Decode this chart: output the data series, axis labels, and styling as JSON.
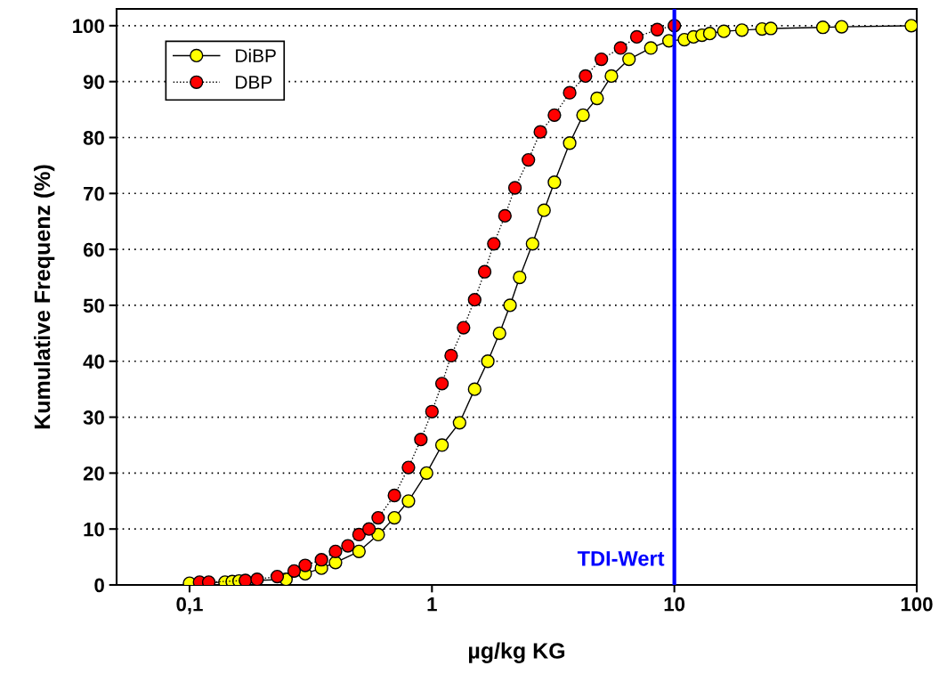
{
  "chart_data": {
    "type": "line",
    "xlabel": "µg/kg KG",
    "ylabel": "Kumulative Frequenz (%)",
    "log": "x",
    "xlim": [
      0.05,
      100
    ],
    "xticks": [
      {
        "value": 0.1,
        "label": "0,1"
      },
      1,
      10,
      100
    ],
    "ylim": [
      0,
      103
    ],
    "yticks": [
      0,
      10,
      20,
      30,
      40,
      50,
      60,
      70,
      80,
      90,
      100
    ],
    "grid": "y",
    "legend": "top left",
    "marker": "circle",
    "series": [
      {
        "name": "DiBP",
        "color": "#ffff00",
        "line_style": "solid",
        "x": [
          0.1,
          0.14,
          0.15,
          0.16,
          0.25,
          0.3,
          0.35,
          0.4,
          0.5,
          0.6,
          0.7,
          0.8,
          0.95,
          1.1,
          1.3,
          1.5,
          1.7,
          1.9,
          2.1,
          2.3,
          2.6,
          2.9,
          3.2,
          3.7,
          4.2,
          4.8,
          5.5,
          6.5,
          8,
          9.5,
          11,
          12,
          13,
          14,
          16,
          19,
          23,
          25,
          41,
          49,
          95
        ],
        "values": [
          0.3,
          0.5,
          0.6,
          0.7,
          1,
          2,
          3,
          4,
          6,
          9,
          12,
          15,
          20,
          25,
          29,
          35,
          40,
          45,
          50,
          55,
          61,
          67,
          72,
          79,
          84,
          87,
          91,
          94,
          96,
          97.3,
          97.5,
          98,
          98.3,
          98.6,
          99,
          99.2,
          99.4,
          99.5,
          99.7,
          99.8,
          100
        ]
      },
      {
        "name": "DBP",
        "color": "#ff0000",
        "line_style": "dotted",
        "x": [
          0.11,
          0.12,
          0.17,
          0.19,
          0.23,
          0.27,
          0.3,
          0.35,
          0.4,
          0.45,
          0.5,
          0.55,
          0.6,
          0.7,
          0.8,
          0.9,
          1.0,
          1.1,
          1.2,
          1.35,
          1.5,
          1.65,
          1.8,
          2.0,
          2.2,
          2.5,
          2.8,
          3.2,
          3.7,
          4.3,
          5.0,
          6.0,
          7.0,
          8.5,
          10
        ],
        "values": [
          0.5,
          0.5,
          0.8,
          1,
          1.5,
          2.5,
          3.5,
          4.5,
          6,
          7,
          9,
          10,
          12,
          16,
          21,
          26,
          31,
          36,
          41,
          46,
          51,
          56,
          61,
          66,
          71,
          76,
          81,
          84,
          88,
          91,
          94,
          96,
          98,
          99.3,
          100
        ]
      }
    ],
    "ref_lines": [
      {
        "axis": "x",
        "value": 10,
        "label": "TDI-Wert",
        "color": "#0000ff"
      }
    ]
  }
}
